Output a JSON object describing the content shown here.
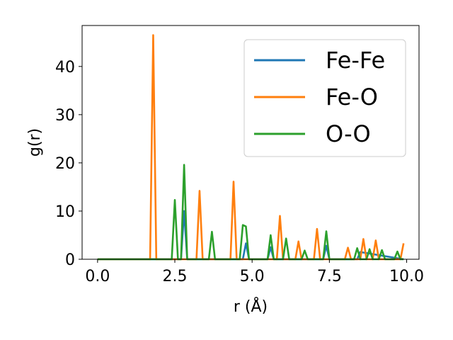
{
  "chart_data": {
    "type": "line",
    "title": "",
    "xlabel": "r (Å)",
    "ylabel": "g(r)",
    "xlim": [
      -0.5,
      10.4
    ],
    "ylim": [
      0,
      48.5
    ],
    "x_ticks": [
      0.0,
      2.5,
      5.0,
      7.5,
      10.0
    ],
    "x_tick_labels": [
      "0.0",
      "2.5",
      "5.0",
      "7.5",
      "10.0"
    ],
    "y_ticks": [
      0,
      10,
      20,
      30,
      40
    ],
    "y_tick_labels": [
      "0",
      "10",
      "20",
      "30",
      "40"
    ],
    "grid": false,
    "legend_position": "top-right",
    "series": [
      {
        "name": "Fe-Fe",
        "color": "#1f77b4",
        "x": [
          0,
          2.4,
          2.5,
          2.6,
          2.7,
          2.8,
          2.9,
          4.6,
          4.7,
          4.8,
          4.9,
          5.5,
          5.6,
          5.7,
          7.3,
          7.4,
          7.5,
          8.3,
          8.4,
          8.5,
          9.9
        ],
        "y": [
          0,
          0,
          0,
          0,
          0,
          10,
          0,
          0,
          0,
          3.3,
          0,
          0,
          2.5,
          0,
          0,
          2.8,
          0,
          0,
          0,
          1.5,
          0
        ]
      },
      {
        "name": "Fe-O",
        "color": "#ff7f0e",
        "x": [
          0,
          1.7,
          1.8,
          1.9,
          3.2,
          3.3,
          3.4,
          4.3,
          4.4,
          4.5,
          5.8,
          5.9,
          6.0,
          6.4,
          6.5,
          6.6,
          7.0,
          7.1,
          7.2,
          8.0,
          8.1,
          8.2,
          8.5,
          8.6,
          8.7,
          8.9,
          9.0,
          9.1,
          9.8,
          9.9
        ],
        "y": [
          0,
          0,
          46.5,
          0,
          0,
          14.2,
          0,
          0,
          16.1,
          0,
          0,
          9.0,
          0,
          0,
          3.7,
          0,
          0,
          6.3,
          0,
          0,
          2.4,
          0,
          0,
          4.2,
          0,
          0,
          3.9,
          0,
          0,
          3.3
        ]
      },
      {
        "name": "O-O",
        "color": "#2ca02c",
        "x": [
          0,
          2.4,
          2.5,
          2.6,
          2.7,
          2.8,
          2.9,
          3.6,
          3.7,
          3.8,
          4.6,
          4.7,
          4.8,
          4.9,
          5.5,
          5.6,
          5.7,
          6.0,
          6.1,
          6.2,
          6.6,
          6.7,
          6.8,
          7.3,
          7.4,
          7.5,
          8.3,
          8.4,
          8.5,
          8.7,
          8.8,
          8.9,
          9.1,
          9.2,
          9.3,
          9.6,
          9.7,
          9.8,
          9.9
        ],
        "y": [
          0,
          0,
          12.3,
          0,
          0,
          19.6,
          0,
          0,
          5.7,
          0,
          0,
          7.1,
          6.8,
          0,
          0,
          5.0,
          0,
          0,
          4.3,
          0,
          0,
          1.8,
          0,
          0,
          5.8,
          0,
          0,
          2.3,
          0,
          0,
          2.1,
          0,
          0,
          1.9,
          0,
          0,
          1.6,
          0,
          0
        ]
      }
    ]
  }
}
